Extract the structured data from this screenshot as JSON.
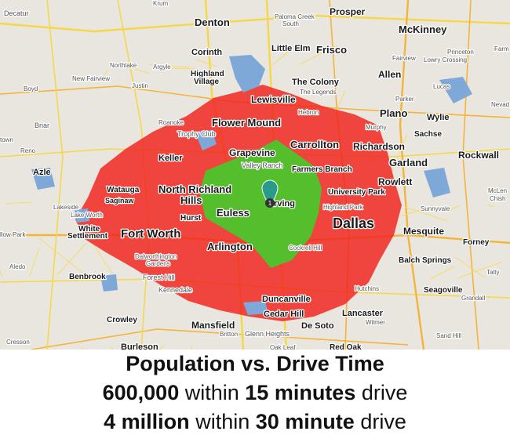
{
  "map": {
    "places": [
      "Decatur",
      "Krum",
      "Denton",
      "Paloma Creek",
      "South",
      "Prosper",
      "McKinney",
      "Princeton",
      "Farm",
      "Corinth",
      "Little Elm",
      "Frisco",
      "Fairview",
      "Lowry Crossing",
      "Northlake",
      "Argyle",
      "Highland",
      "Village",
      "Allen",
      "New Fairview",
      "Justin",
      "The Colony",
      "The Legends",
      "Lucas",
      "Boyd",
      "Lewisville",
      "Parker",
      "Nevad",
      "Hebron",
      "Plano",
      "Wylie",
      "Flower Mound",
      "Roanoke",
      "Briar",
      "Murphy",
      "Sachse",
      "Trophy Club",
      "town",
      "Reno",
      "Keller",
      "Grapevine",
      "Carrollton",
      "Richardson",
      "Valley Ranch",
      "Farmers Branch",
      "Garland",
      "Rockwall",
      "Azle",
      "Rowlett",
      "Watauga",
      "North Richland",
      "Hills",
      "University Park",
      "McLen",
      "Chish",
      "Saginaw",
      "Irving",
      "Highland Park",
      "Lakeside",
      "Euless",
      "Lake Worth",
      "Sunnyvale",
      "Dallas",
      "White",
      "Settlement",
      "Hurst",
      "Fort Worth",
      "Mesquite",
      "llow Park",
      "Forney",
      "Arlington",
      "Cockrell Hill",
      "Dalworthington",
      "Gardens",
      "Balch Springs",
      "Aledo",
      "Benbrook",
      "Forest Hill",
      "Talty",
      "Kennedale",
      "Hutchins",
      "Seagoville",
      "Duncanville",
      "Grandall",
      "Lancaster",
      "Crowley",
      "Cedar Hill",
      "Mansfield",
      "De Soto",
      "Wilmer",
      "Britton",
      "Glenn Heights",
      "Sand Hill",
      "Cresson",
      "Burleson",
      "Oak Leaf",
      "Red Oak"
    ],
    "marker": "1"
  },
  "caption": {
    "title": "Population vs. Drive Time",
    "lines": [
      [
        "600,000",
        "within",
        "15 minutes",
        "drive"
      ],
      [
        "4 million",
        "within",
        "30 minute",
        "drive"
      ]
    ]
  }
}
